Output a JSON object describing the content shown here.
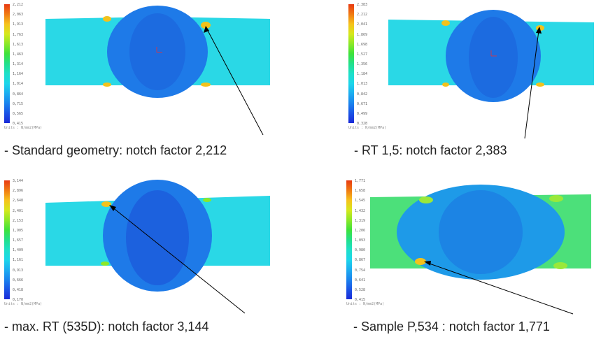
{
  "panels": [
    {
      "caption": "- Standard geometry: notch factor 2,212",
      "units": "Units : N/mm2(MPa)",
      "ticks": [
        "2,212",
        "2,063",
        "1,913",
        "1,763",
        "1,613",
        "1,463",
        "1,314",
        "1,164",
        "1,014",
        "0,864",
        "0,715",
        "0,565",
        "0,415"
      ]
    },
    {
      "caption": "- RT 1,5: notch factor 2,383",
      "units": "Units : N/mm2(MPa)",
      "ticks": [
        "2,383",
        "2,212",
        "2,041",
        "1,869",
        "1,698",
        "1,527",
        "1,356",
        "1,184",
        "1,013",
        "0,842",
        "0,671",
        "0,499",
        "0,328"
      ]
    },
    {
      "caption": "- max. RT (535D): notch factor 3,144",
      "units": "Units : N/mm2(MPa)",
      "ticks": [
        "3,144",
        "2,896",
        "2,648",
        "2,401",
        "2,153",
        "1,905",
        "1,657",
        "1,409",
        "1,161",
        "0,913",
        "0,666",
        "0,418",
        "0,170"
      ]
    },
    {
      "caption": "- Sample P,534 : notch factor 1,771",
      "units": "Units : N/mm2(MPa)",
      "ticks": [
        "1,771",
        "1,658",
        "1,545",
        "1,432",
        "1,319",
        "1,206",
        "1,093",
        "0,980",
        "0,867",
        "0,754",
        "0,641",
        "0,528",
        "0,415"
      ]
    }
  ],
  "colors": {
    "colorbar": [
      "#e83a12",
      "#f07a12",
      "#f6c21c",
      "#d6e81c",
      "#8ce828",
      "#3ee23a",
      "#22e08a",
      "#1ee0c8",
      "#1cd6ea",
      "#1caef0",
      "#1a84ee",
      "#1a54e6",
      "#1a2ad8"
    ],
    "plate": "#2ad8e6",
    "plate_green": "#4ce07a",
    "bulge": "#1e7ae8",
    "bulge_dark": "#1a48d4",
    "notch": "#f2c21c",
    "notch_green": "#9ae83a"
  }
}
